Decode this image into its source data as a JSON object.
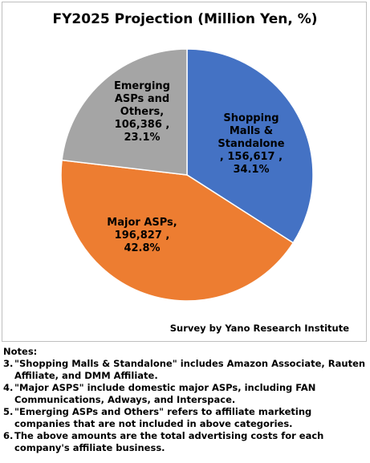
{
  "chart_data": {
    "type": "pie",
    "title": "FY2025 Projection (Million Yen, %)",
    "slices": [
      {
        "name": "Shopping Malls & Standalone",
        "value": 156617,
        "percent": 34.1,
        "color": "#4472c4",
        "label": "Shopping\nMalls &\nStandalone\n, 156,617 ,\n34.1%"
      },
      {
        "name": "Major ASPs",
        "value": 196827,
        "percent": 42.8,
        "color": "#ed7d31",
        "label": "Major ASPs,\n196,827 ,\n42.8%"
      },
      {
        "name": "Emerging ASPs and Others",
        "value": 106386,
        "percent": 23.1,
        "color": "#a5a5a5",
        "label": "Emerging\nASPs and\nOthers,\n106,386 ,\n23.1%"
      }
    ],
    "source": "Survey by Yano Research Institute"
  },
  "notes": {
    "title": "Notes:",
    "items": [
      {
        "num": "3.",
        "text": "\"Shopping Malls & Standalone\" includes Amazon Associate, Rauten Affiliate, and DMM Affiliate."
      },
      {
        "num": "4.",
        "text": "\"Major ASPS\" include domestic major ASPs, including FAN Communications, Adways, and Interspace."
      },
      {
        "num": "5.",
        "text": "\"Emerging ASPs and Others\" refers to affiliate marketing companies that are not included in above categories."
      },
      {
        "num": "6.",
        "text": "The above amounts are the total advertising costs for each company's affiliate business."
      }
    ]
  }
}
